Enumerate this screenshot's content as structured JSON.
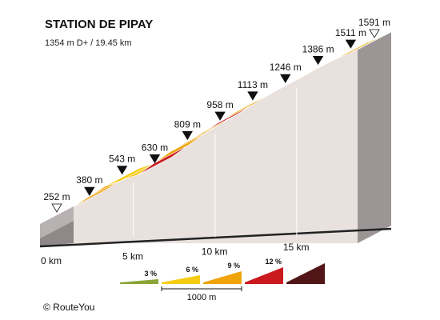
{
  "chart_data": {
    "type": "area",
    "title": "STATION DE PIPAY",
    "subtitle": "1354 m D+ / 19.45 km",
    "elevation_unit": "m",
    "distance_unit": "km",
    "points": [
      {
        "km": 0.0,
        "elevation": 252,
        "label": "252 m",
        "marker": "open"
      },
      {
        "km": 2.0,
        "elevation": 380,
        "label": "380 m",
        "marker": "filled"
      },
      {
        "km": 4.0,
        "elevation": 543,
        "label": "543 m",
        "marker": "filled"
      },
      {
        "km": 6.0,
        "elevation": 630,
        "label": "630 m",
        "marker": "filled"
      },
      {
        "km": 8.0,
        "elevation": 809,
        "label": "809 m",
        "marker": "filled"
      },
      {
        "km": 10.0,
        "elevation": 958,
        "label": "958 m",
        "marker": "filled"
      },
      {
        "km": 12.0,
        "elevation": 1113,
        "label": "1113 m",
        "marker": "filled"
      },
      {
        "km": 14.0,
        "elevation": 1246,
        "label": "1246 m",
        "marker": "filled"
      },
      {
        "km": 16.0,
        "elevation": 1386,
        "label": "1386 m",
        "marker": "filled"
      },
      {
        "km": 18.0,
        "elevation": 1511,
        "label": "1511 m",
        "marker": "filled"
      },
      {
        "km": 19.45,
        "elevation": 1591,
        "label": "1591 m",
        "marker": "open"
      }
    ],
    "segments": [
      {
        "from": 0.0,
        "to": 0.5,
        "gradient_class": 3
      },
      {
        "from": 0.5,
        "to": 1.0,
        "gradient_class": 6
      },
      {
        "from": 1.0,
        "to": 2.0,
        "gradient_class": 9
      },
      {
        "from": 2.0,
        "to": 3.0,
        "gradient_class": 9
      },
      {
        "from": 3.0,
        "to": 4.0,
        "gradient_class": 9
      },
      {
        "from": 4.0,
        "to": 5.0,
        "gradient_class": 6
      },
      {
        "from": 5.0,
        "to": 6.0,
        "gradient_class": 6
      },
      {
        "from": 6.0,
        "to": 7.0,
        "gradient_class": 12
      },
      {
        "from": 7.0,
        "to": 8.0,
        "gradient_class": 9
      },
      {
        "from": 8.0,
        "to": 9.0,
        "gradient_class": 9
      },
      {
        "from": 9.0,
        "to": 10.0,
        "gradient_class": 9
      },
      {
        "from": 10.0,
        "to": 11.0,
        "gradient_class": 12
      },
      {
        "from": 11.0,
        "to": 12.0,
        "gradient_class": 9
      },
      {
        "from": 12.0,
        "to": 13.0,
        "gradient_class": 9
      },
      {
        "from": 13.0,
        "to": 14.0,
        "gradient_class": 9
      },
      {
        "from": 14.0,
        "to": 15.0,
        "gradient_class": 9
      },
      {
        "from": 15.0,
        "to": 16.0,
        "gradient_class": 9
      },
      {
        "from": 16.0,
        "to": 17.0,
        "gradient_class": 6
      },
      {
        "from": 17.0,
        "to": 18.0,
        "gradient_class": 9
      },
      {
        "from": 18.0,
        "to": 19.0,
        "gradient_class": 9
      },
      {
        "from": 19.0,
        "to": 19.45,
        "gradient_class": 3
      }
    ],
    "distance_ticks": [
      {
        "km": 0,
        "label": "0 km"
      },
      {
        "km": 5,
        "label": "5 km"
      },
      {
        "km": 10,
        "label": "10 km"
      },
      {
        "km": 15,
        "label": "15 km"
      }
    ],
    "legend": {
      "items": [
        {
          "class": 3,
          "label": "3 %",
          "color": "#8aa437"
        },
        {
          "class": 6,
          "label": "6 %",
          "color": "#f6cc12"
        },
        {
          "class": 9,
          "label": "9 %",
          "color": "#eea40a"
        },
        {
          "class": 12,
          "label": "12 %",
          "color": "#cb1a1f"
        },
        {
          "class": 15,
          "label": "",
          "color": "#521518"
        }
      ],
      "scale_label": "1000 m"
    }
  },
  "copyright": "© RouteYou"
}
